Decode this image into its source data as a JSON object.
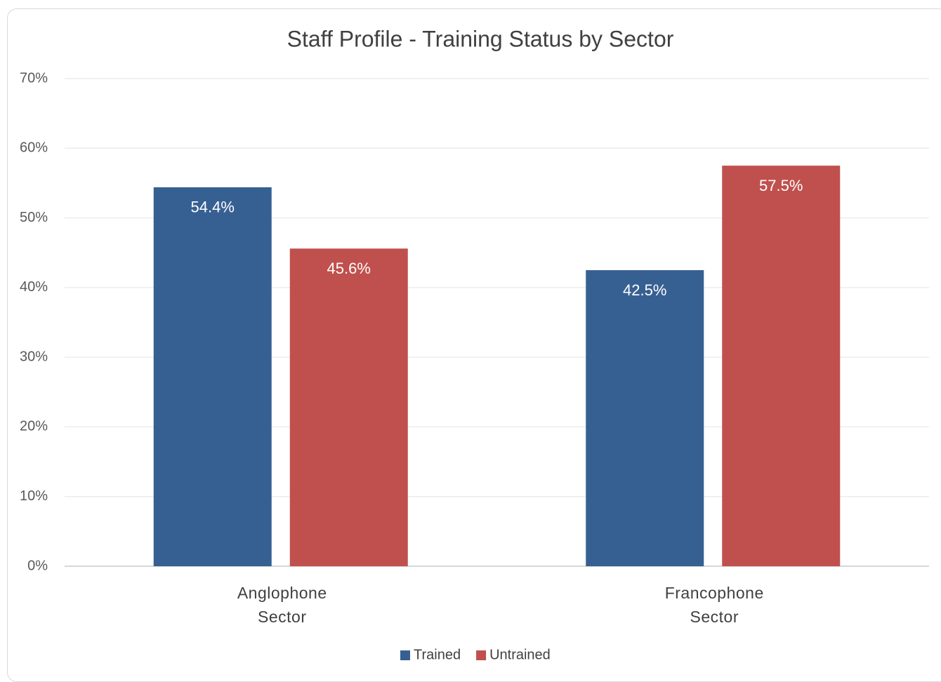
{
  "chart_data": {
    "type": "bar",
    "title": "Staff Profile - Training Status by Sector",
    "categories": [
      "Anglophone Sector",
      "Francophone Sector"
    ],
    "series": [
      {
        "name": "Trained",
        "color": "#376092",
        "values": [
          54.4,
          42.5
        ],
        "value_labels": [
          "54.4%",
          "42.5%"
        ]
      },
      {
        "name": "Untrained",
        "color": "#c0504d",
        "values": [
          45.6,
          57.5
        ],
        "value_labels": [
          "45.6%",
          "57.5%"
        ]
      }
    ],
    "ylim": [
      0,
      70
    ],
    "yticks": [
      {
        "value": 0,
        "label": "0%"
      },
      {
        "value": 10,
        "label": "10%"
      },
      {
        "value": 20,
        "label": "20%"
      },
      {
        "value": 30,
        "label": "30%"
      },
      {
        "value": 40,
        "label": "40%"
      },
      {
        "value": 50,
        "label": "50%"
      },
      {
        "value": 60,
        "label": "60%"
      },
      {
        "value": 70,
        "label": "70%"
      }
    ],
    "grid": true,
    "legend": "bottom"
  }
}
